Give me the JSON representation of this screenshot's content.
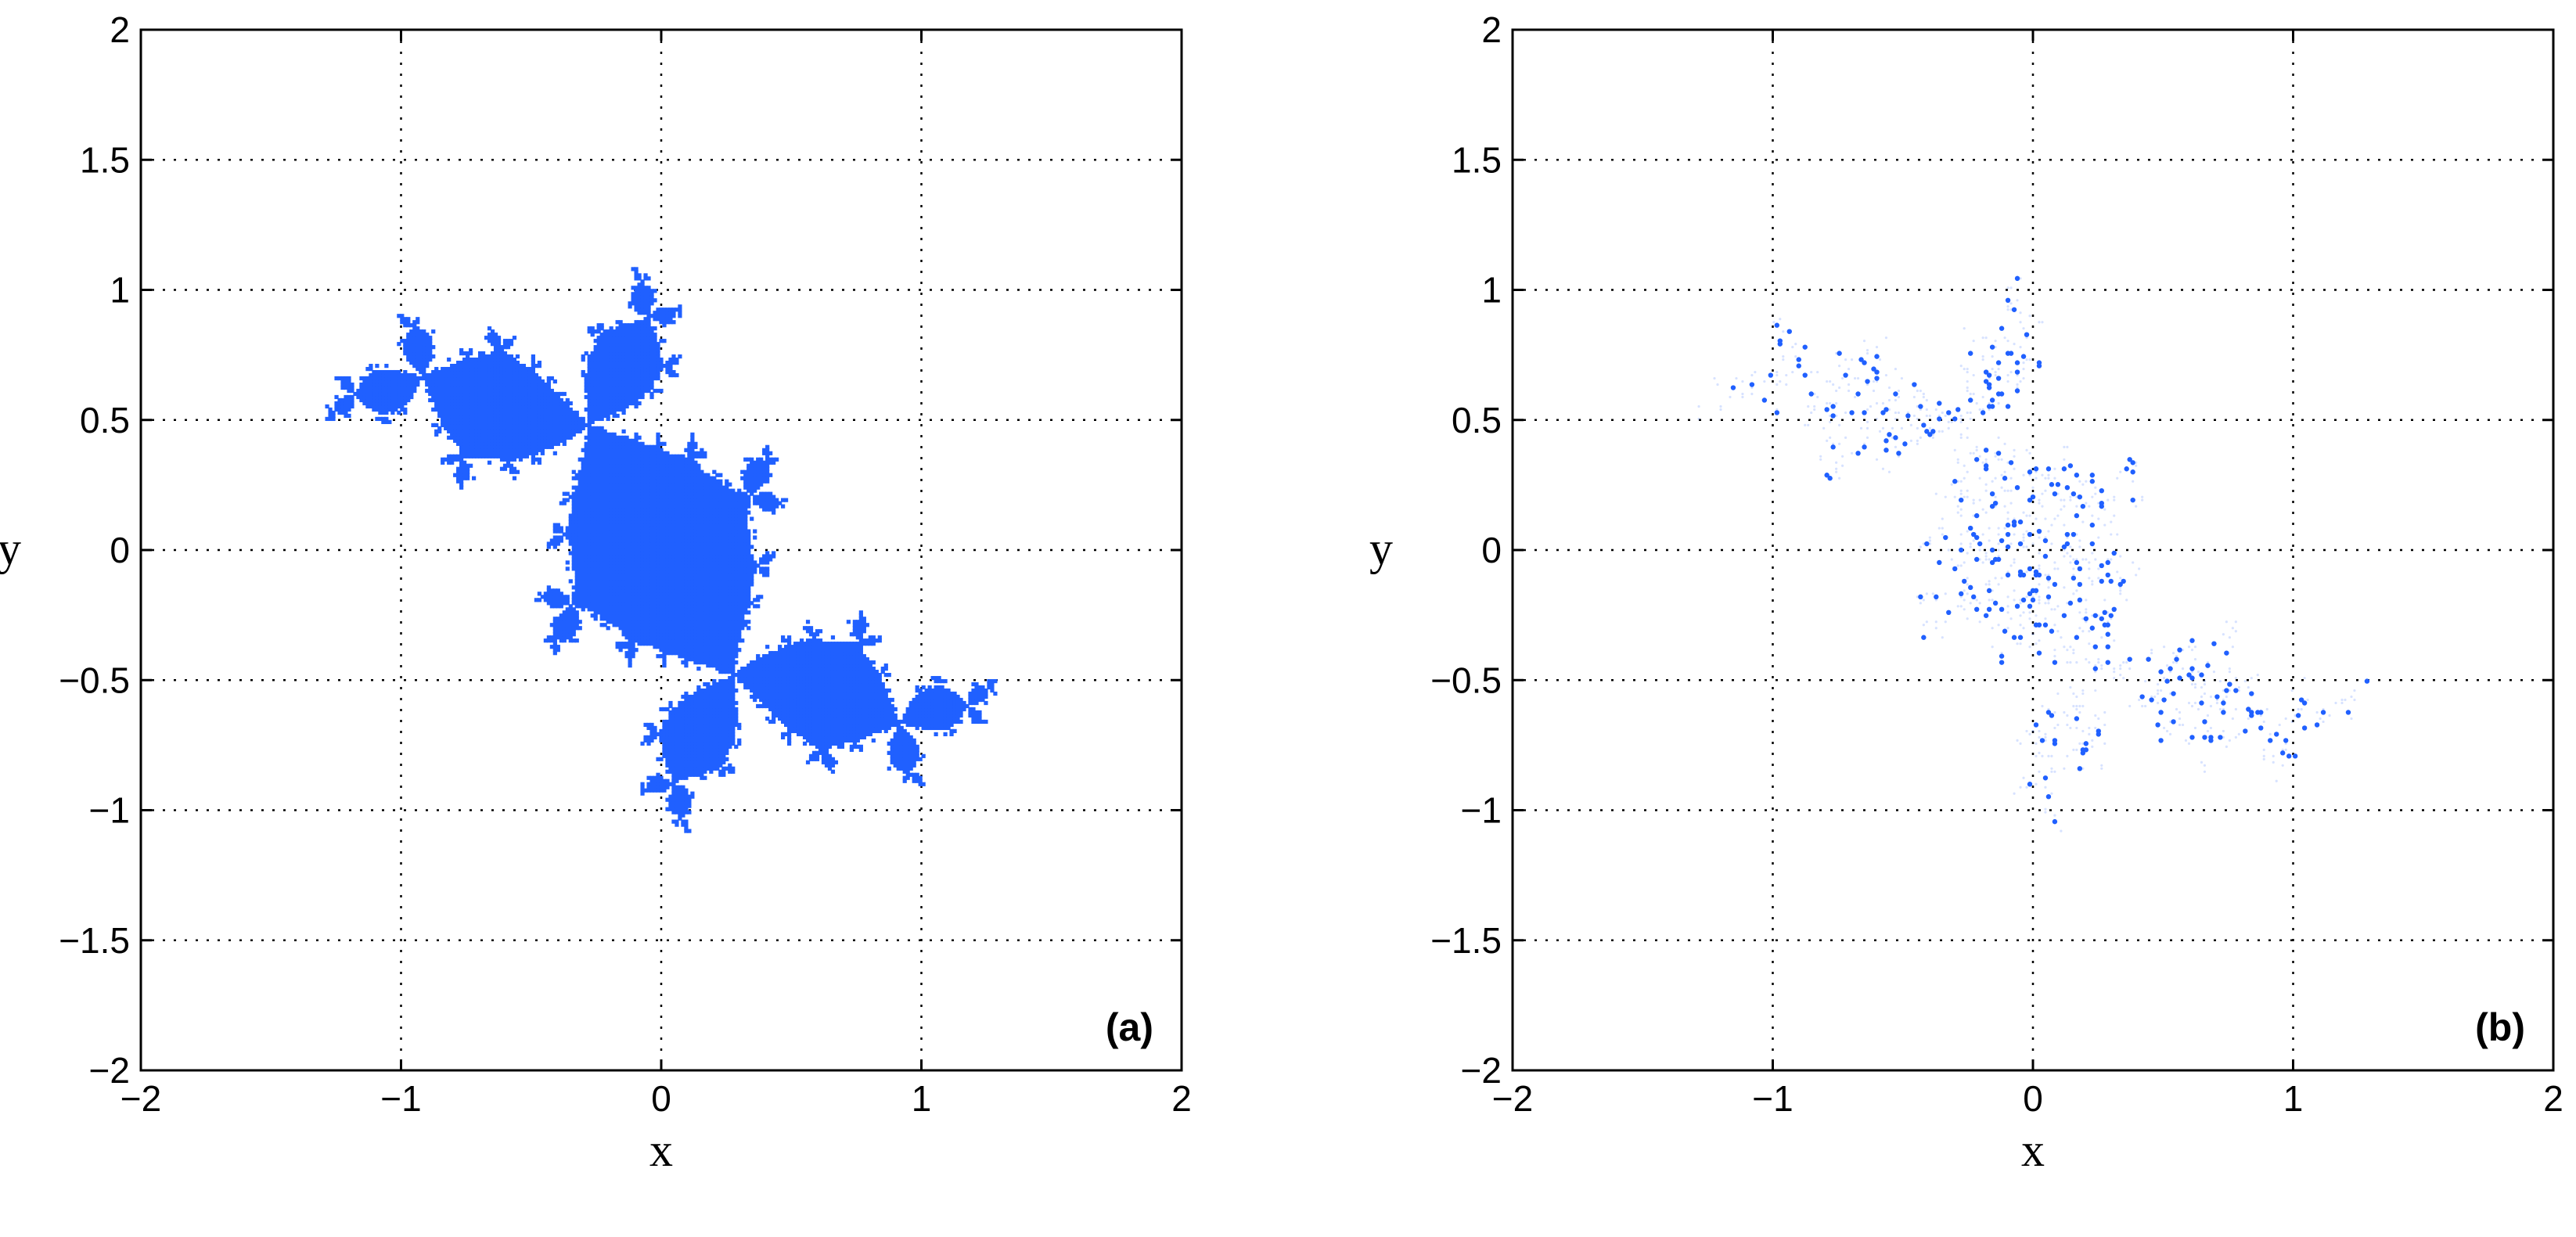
{
  "chart_data": [
    {
      "type": "scatter",
      "panel_label": "(a)",
      "xlabel": "x",
      "ylabel": "y",
      "xlim": [
        -2,
        2
      ],
      "ylim": [
        -2,
        2
      ],
      "xticks": [
        "−2",
        "−1",
        "0",
        "1",
        "2"
      ],
      "yticks": [
        "−2",
        "−1.5",
        "−1",
        "−0.5",
        "0",
        "0.5",
        "1",
        "1.5",
        "2"
      ],
      "grid": true,
      "marker_color": "#2060ff",
      "description_of_points": "dense filled Julia-set-like fractal",
      "fractal_param": {
        "c_re": -0.12,
        "c_im": 0.75
      },
      "fill_mode": "dense"
    },
    {
      "type": "scatter",
      "panel_label": "(b)",
      "xlabel": "x",
      "ylabel": "y",
      "xlim": [
        -2,
        2
      ],
      "ylim": [
        -2,
        2
      ],
      "xticks": [
        "−2",
        "−1",
        "0",
        "1",
        "2"
      ],
      "yticks": [
        "−2",
        "−1.5",
        "−1",
        "−0.5",
        "0",
        "0.5",
        "1",
        "1.5",
        "2"
      ],
      "grid": true,
      "marker_color": "#2060ff",
      "fractal_param": {
        "c_re": -0.12,
        "c_im": 0.75
      },
      "fill_mode": "sparse"
    }
  ]
}
